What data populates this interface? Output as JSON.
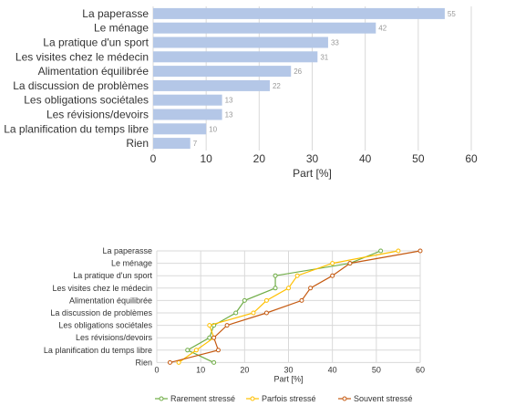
{
  "chart_data": [
    {
      "type": "bar",
      "orientation": "horizontal",
      "categories": [
        "La paperasse",
        "Le ménage",
        "La pratique d'un sport",
        "Les visites chez le médecin",
        "Alimentation équilibrée",
        "La discussion de problèmes",
        "Les obligations sociétales",
        "Les révisions/devoirs",
        "La planification du temps libre",
        "Rien"
      ],
      "values": [
        55,
        42,
        33,
        31,
        26,
        22,
        13,
        13,
        10,
        7
      ],
      "data_labels": [
        "55",
        "42",
        "33",
        "31",
        "26",
        "22",
        "13",
        "13",
        "10",
        "7"
      ],
      "xlabel": "Part [%]",
      "xlim": [
        0,
        60
      ],
      "xticks": [
        "0",
        "10",
        "20",
        "30",
        "40",
        "50",
        "60"
      ],
      "grid": true,
      "color": "#b4c7e7"
    },
    {
      "type": "line",
      "orientation": "horizontal",
      "categories": [
        "La paperasse",
        "Le ménage",
        "La pratique d'un sport",
        "Les visites chez le médecin",
        "Alimentation équilibrée",
        "La discussion de problèmes",
        "Les obligations sociétales",
        "Les révisions/devoirs",
        "La planification du temps libre",
        "Rien"
      ],
      "series": [
        {
          "name": "Rarement stressé",
          "values": [
            51,
            44,
            27,
            27,
            20,
            18,
            13,
            12,
            7,
            13
          ],
          "color": "#70ad47"
        },
        {
          "name": "Parfois stressé",
          "values": [
            55,
            40,
            32,
            30,
            25,
            22,
            12,
            13,
            9,
            5
          ],
          "color": "#ffc000"
        },
        {
          "name": "Souvent stressé",
          "values": [
            60,
            44,
            40,
            35,
            33,
            25,
            16,
            13,
            14,
            3
          ],
          "color": "#c55a11"
        }
      ],
      "xlabel": "Part [%]",
      "xlim": [
        0,
        60
      ],
      "xticks": [
        "0",
        "10",
        "20",
        "30",
        "40",
        "50",
        "60"
      ],
      "grid": true,
      "legend_position": "bottom"
    }
  ]
}
